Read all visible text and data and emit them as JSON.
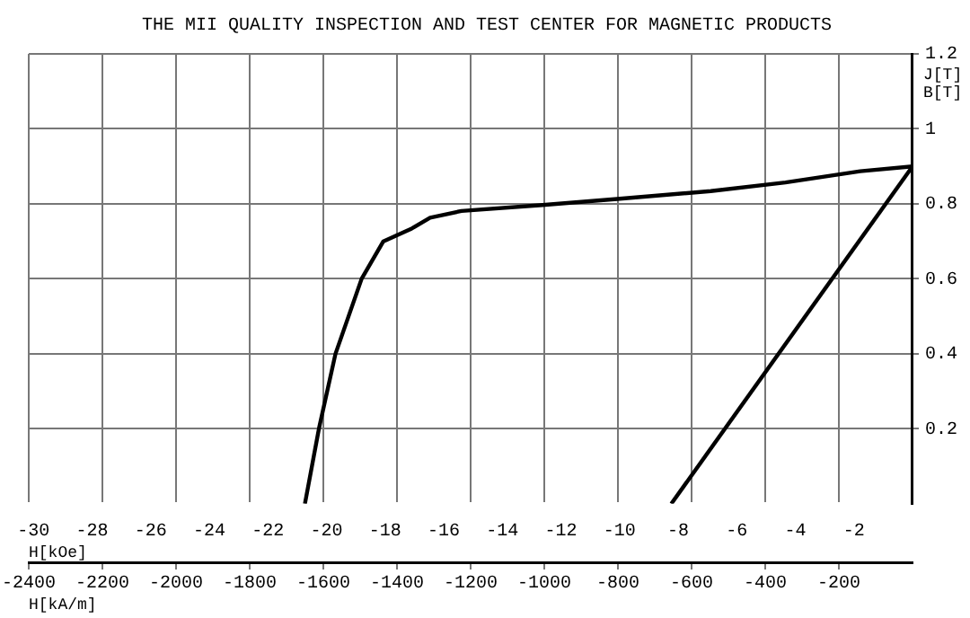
{
  "chart_data": {
    "type": "line",
    "title": "THE MII QUALITY INSPECTION AND TEST CENTER FOR MAGNETIC PRODUCTS",
    "xlabel": "H[kA/m]",
    "x2label": "H[kOe]",
    "ylabel": "J[T] B[T]",
    "series": [
      {
        "color": "#000000",
        "x": [
          -1650,
          -1612,
          -1567,
          -1496,
          -1437,
          -1360,
          -1310,
          -1225,
          -1005,
          -802,
          -548,
          -345,
          -142,
          0
        ],
        "values": [
          0,
          0.2,
          0.4,
          0.6,
          0.7,
          0.734,
          0.763,
          0.781,
          0.797,
          0.813,
          0.834,
          0.857,
          0.887,
          0.9
        ]
      },
      {
        "color": "#000000",
        "x": [
          -655,
          0
        ],
        "values": [
          0,
          0.9
        ]
      }
    ],
    "xlim": [
      -2400,
      0
    ],
    "xticks": [
      -2400,
      -2200,
      -2000,
      -1800,
      -1600,
      -1400,
      -1200,
      -1000,
      -800,
      -600,
      -400,
      -200
    ],
    "x2lim": [
      -30.16,
      0
    ],
    "x2ticks": [
      -30,
      -28,
      -26,
      -24,
      -22,
      -20,
      -18,
      -16,
      -14,
      -12,
      -10,
      -8,
      -6,
      -4,
      -2
    ],
    "ylim": [
      0,
      1.2
    ],
    "yticks": [
      0.2,
      0.4,
      0.6,
      0.8,
      1,
      1.2
    ],
    "grid": true,
    "line_style": "solid",
    "marker": "none",
    "legend": false
  }
}
